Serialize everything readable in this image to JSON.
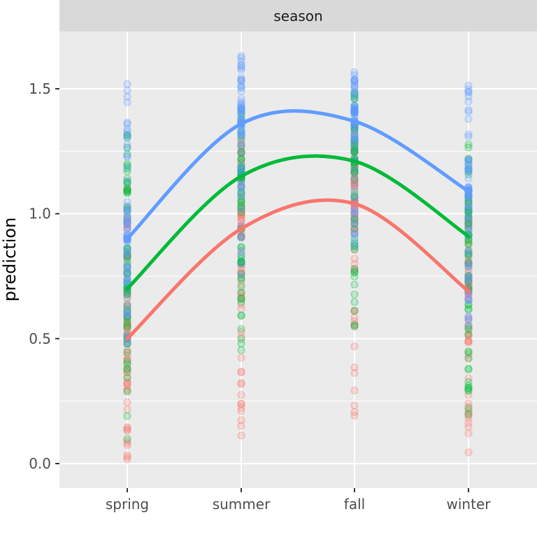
{
  "chart_data": {
    "type": "scatter",
    "facet_label": "season",
    "xlabel": "",
    "ylabel": "prediction",
    "categories": [
      "spring",
      "summer",
      "fall",
      "winter"
    ],
    "ylim": [
      -0.1,
      1.75
    ],
    "yticks": [
      0.0,
      0.5,
      1.0,
      1.5
    ],
    "ytick_labels": [
      "0.0",
      "0.5",
      "1.0",
      "1.5"
    ],
    "grid": true,
    "legend": "none",
    "series": [
      {
        "color": "#F8766D",
        "values": [
          0.5,
          0.94,
          1.04,
          0.69
        ],
        "point_range": [
          [
            -0.02,
            1.1
          ],
          [
            0.09,
            1.3
          ],
          [
            0.18,
            1.35
          ],
          [
            0.02,
            1.05
          ]
        ]
      },
      {
        "color": "#00BA38",
        "values": [
          0.7,
          1.15,
          1.21,
          0.91
        ],
        "point_range": [
          [
            0.09,
            1.35
          ],
          [
            0.35,
            1.45
          ],
          [
            0.52,
            1.5
          ],
          [
            0.13,
            1.3
          ]
        ]
      },
      {
        "color": "#619CFF",
        "values": [
          0.9,
          1.36,
          1.37,
          1.09
        ],
        "point_range": [
          [
            0.45,
            1.55
          ],
          [
            0.75,
            1.64
          ],
          [
            0.8,
            1.6
          ],
          [
            0.55,
            1.52
          ]
        ]
      }
    ]
  }
}
